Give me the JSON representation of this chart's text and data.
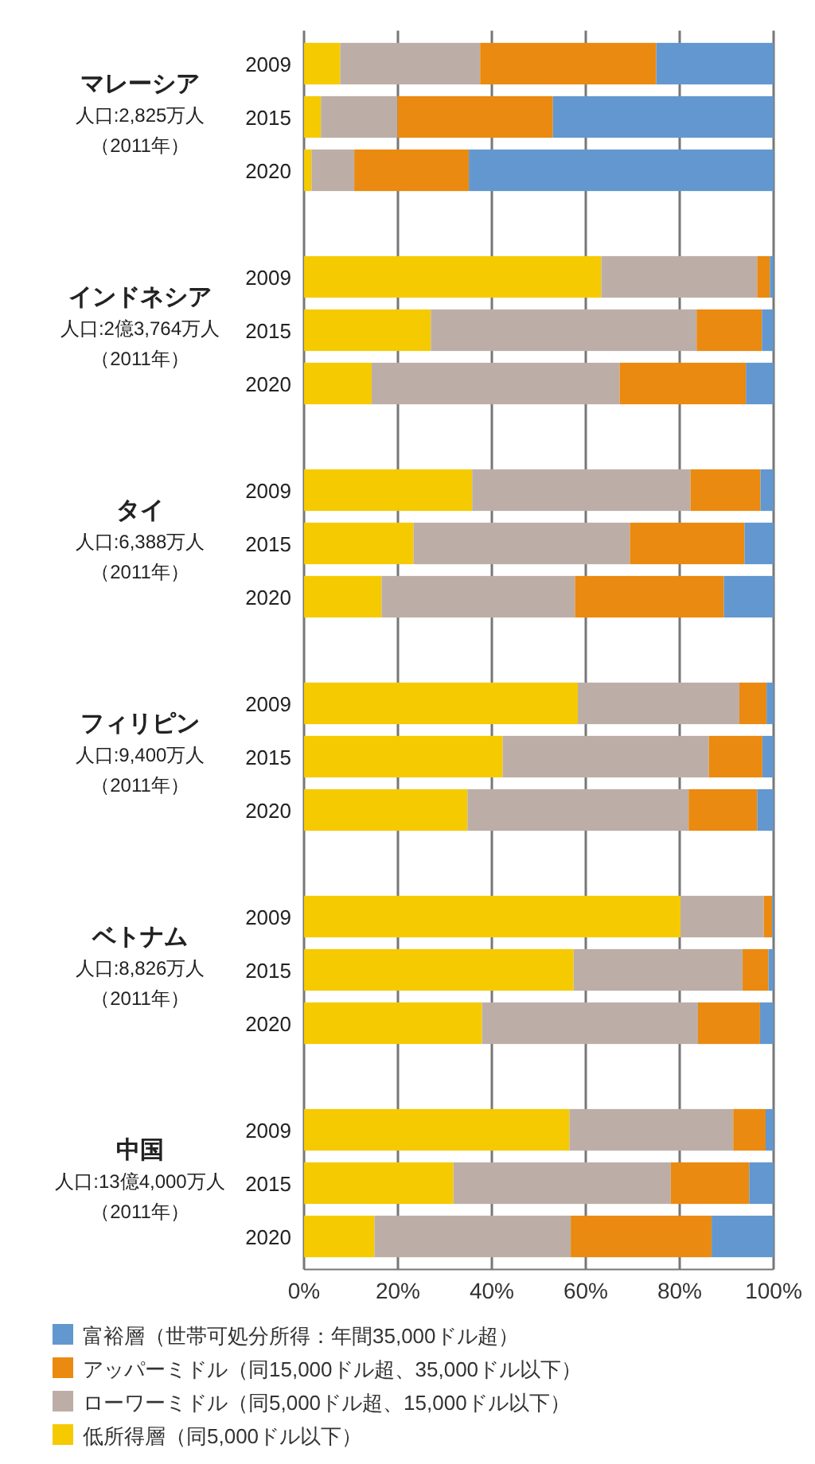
{
  "chart_data": {
    "type": "bar",
    "orientation": "horizontal",
    "stacked": true,
    "categories": [
      "2009",
      "2015",
      "2020",
      null,
      "2009",
      "2015",
      "2020",
      null,
      "2009",
      "2015",
      "2020",
      null,
      "2009",
      "2015",
      "2020",
      null,
      "2009",
      "2015",
      "2020",
      null,
      "2009",
      "2015",
      "2020"
    ],
    "series": [
      {
        "name": "低所得層（同5,000ドル以下）",
        "color": "#f5ca00",
        "values": [
          7.7,
          3.6,
          1.6,
          null,
          63.3,
          27,
          14.4,
          null,
          35.8,
          23.3,
          16.5,
          null,
          58.3,
          42.3,
          34.8,
          null,
          80.2,
          57.4,
          37.9,
          null,
          56.5,
          31.8,
          15
        ]
      },
      {
        "name": "ローワーミドル（同5,000ドル超、15,000ドル以下）",
        "color": "#bcaea7",
        "values": [
          29.8,
          16.3,
          9.1,
          null,
          33.2,
          56.6,
          52.8,
          null,
          46.5,
          46.1,
          41.2,
          null,
          34.4,
          43.9,
          47.1,
          null,
          17.7,
          36,
          46,
          null,
          34.9,
          46.3,
          41.8
        ]
      },
      {
        "name": "アッパーミドル（同15,000ドル超、35,000ドル以下）",
        "color": "#ea8a10",
        "values": [
          37.5,
          33.1,
          24.4,
          null,
          2.7,
          13.9,
          26.9,
          null,
          14.9,
          24.4,
          31.7,
          null,
          5.8,
          11.4,
          14.6,
          null,
          1.8,
          5.5,
          13.2,
          null,
          6.9,
          16.7,
          30
        ]
      },
      {
        "name": "富裕層（世帯可処分所得：年間35,000ドル超）",
        "color": "#6397cf",
        "values": [
          25,
          47,
          64.9,
          null,
          0.8,
          2.5,
          5.9,
          null,
          2.8,
          6.2,
          10.6,
          null,
          1.5,
          2.4,
          3.5,
          null,
          0.3,
          1.1,
          2.9,
          null,
          1.7,
          5.2,
          13.2
        ]
      }
    ],
    "xlim": [
      0,
      100
    ],
    "xticks": [
      {
        "value": 0,
        "label": "0%"
      },
      {
        "value": 20,
        "label": "20%"
      },
      {
        "value": 40,
        "label": "40%"
      },
      {
        "value": 60,
        "label": "60%"
      },
      {
        "value": 80,
        "label": "80%"
      },
      {
        "value": 100,
        "label": "100%"
      }
    ],
    "grid": "x",
    "legend": "bottom",
    "annotations": [
      "マレーシア",
      "人口:2,825万人",
      "（2011年）",
      "インドネシア",
      "人口:2億3,764万人",
      "（2011年）",
      "タイ",
      "人口:6,388万人",
      "（2011年）",
      "フィリピン",
      "人口:9,400万人",
      "（2011年）",
      "ベトナム",
      "人口:8,826万人",
      "（2011年）",
      "中国",
      "人口:13億4,000万人",
      "（2011年）"
    ]
  }
}
